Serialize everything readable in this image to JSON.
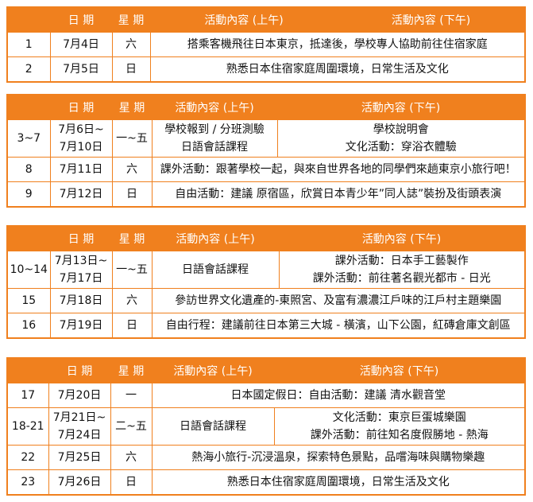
{
  "header": [
    "日 期",
    "星 期",
    "活動內容 (上午)",
    "活動內容 (下午)"
  ],
  "tables": [
    {
      "rows": [
        [
          "1",
          "7月4日",
          "六",
          "搭乘客機飛往日本東京，抵達後，學校專人協助前往住宿家庭"
        ],
        [
          "2",
          "7月5日",
          "日",
          "熟悉日本住宿家庭周圍環境，日常生活及文化"
        ]
      ]
    },
    {
      "rows": [
        [
          "3~7",
          [
            "7月6日~",
            "7月10日"
          ],
          "一~五",
          [
            "學校報到 / 分班測驗",
            "日語會話課程"
          ],
          [
            "學校說明會",
            "文化活動：穿浴衣體驗"
          ]
        ],
        [
          "8",
          "7月11日",
          "六",
          "課外活動：跟著學校一起，與來自世界各地的同學們來趟東京小旅行吧！"
        ],
        [
          "9",
          "7月12日",
          "日",
          "自由活動：建議 原宿區，欣賞日本青少年”同人誌”裝扮及街頭表演"
        ]
      ]
    },
    {
      "rows": [
        [
          "10~14",
          [
            "7月13日~",
            "7月17日"
          ],
          "一~五",
          "日語會話課程",
          [
            "課外活動：日本手工藝製作",
            "課外活動：前往著名觀光都市 - 日光"
          ]
        ],
        [
          "15",
          "7月18日",
          "六",
          "參訪世界文化遺產的-東照宮、及富有濃濃江戶味的江戶村主題樂園"
        ],
        [
          "16",
          "7月19日",
          "日",
          "自由行程：建議前往日本第三大城 - 橫濱，山下公園，紅磚倉庫文創區"
        ]
      ]
    },
    {
      "rows": [
        [
          "17",
          "7月20日",
          "一",
          "日本國定假日：自由活動：建議 清水觀音堂"
        ],
        [
          "18-21",
          [
            "7月21日~",
            "7月24日"
          ],
          "二~五",
          "日語會話課程",
          [
            "文化活動：東京巨蛋城樂園",
            "課外活動：前往知名度假勝地 - 熱海"
          ]
        ],
        [
          "22",
          "7月25日",
          "六",
          "熱海小旅行-沉浸溫泉，探索特色景點，品嚐海味與購物樂趣"
        ],
        [
          "23",
          "7月26日",
          "日",
          "熟悉日本住宿家庭周圍環境，日常生活及文化"
        ]
      ]
    }
  ]
}
